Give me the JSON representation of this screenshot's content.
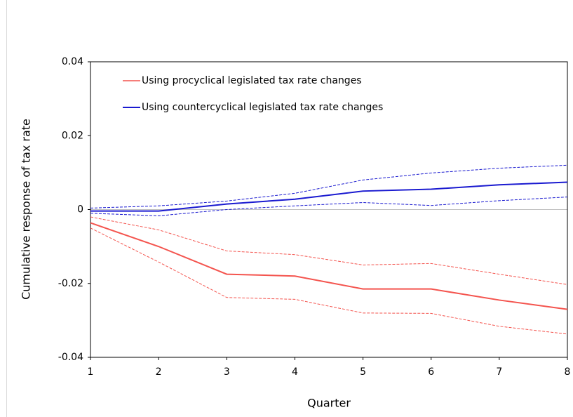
{
  "chart_data": {
    "type": "line",
    "x_label": "Quarter",
    "y_label": "Cumulative response of tax rate",
    "x": [
      1,
      2,
      3,
      4,
      5,
      6,
      7,
      8
    ],
    "xlim": [
      1,
      8
    ],
    "xticks": [
      1,
      2,
      3,
      4,
      5,
      6,
      7,
      8
    ],
    "ylim": [
      -0.04,
      0.04
    ],
    "yticks": [
      -0.04,
      -0.02,
      0,
      0.02,
      0.04
    ],
    "legend": "upper-left",
    "series": [
      {
        "name": "Using procyclical legislated tax rate changes",
        "color": "#f4544e",
        "values": [
          -0.0036,
          -0.01,
          -0.0175,
          -0.018,
          -0.0215,
          -0.0215,
          -0.0245,
          -0.027
        ],
        "upper": [
          -0.002,
          -0.0055,
          -0.0112,
          -0.0122,
          -0.015,
          -0.0146,
          -0.0175,
          -0.0203
        ],
        "lower": [
          -0.005,
          -0.0142,
          -0.0238,
          -0.0243,
          -0.028,
          -0.0281,
          -0.0316,
          -0.0337
        ]
      },
      {
        "name": "Using countercyclical legislated tax rate changes",
        "color": "#1a1ad0",
        "values": [
          -0.0004,
          -0.0004,
          0.0015,
          0.0028,
          0.005,
          0.0055,
          0.0067,
          0.0074
        ],
        "upper": [
          0.0004,
          0.001,
          0.0023,
          0.0044,
          0.008,
          0.0099,
          0.0112,
          0.012
        ],
        "lower": [
          -0.001,
          -0.0017,
          0,
          0.001,
          0.0019,
          0.0011,
          0.0024,
          0.0034
        ]
      }
    ]
  }
}
